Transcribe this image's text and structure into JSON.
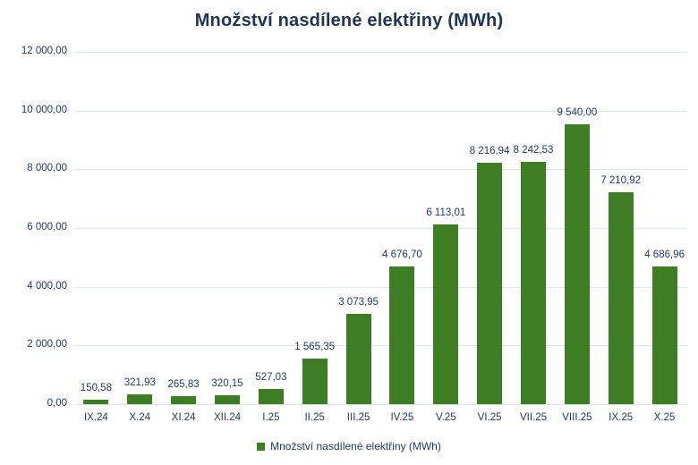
{
  "title": "Množství nasdílené elektřiny (MWh)",
  "legend": {
    "label": "Množství nasdílené elektřiny (MWh)"
  },
  "colors": {
    "bar": "#3d7d24",
    "gridline": "#dbe8f2",
    "text": "#24395b",
    "title": "#1f3556",
    "background": "#ffffff"
  },
  "chart_data": {
    "type": "bar",
    "title": "Množství nasdílené elektřiny (MWh)",
    "xlabel": "",
    "ylabel": "",
    "categories": [
      "IX.24",
      "X.24",
      "XI.24",
      "XII.24",
      "I.25",
      "II.25",
      "III.25",
      "IV.25",
      "V.25",
      "VI.25",
      "VII.25",
      "VIII.25",
      "IX.25",
      "X.25"
    ],
    "values": [
      150.58,
      321.93,
      265.83,
      320.15,
      527.03,
      1565.35,
      3073.95,
      4676.7,
      6113.01,
      8216.94,
      8242.53,
      9540.0,
      7210.92,
      4686.96
    ],
    "value_labels": [
      "150,58",
      "321,93",
      "265,83",
      "320,15",
      "527,03",
      "1 565,35",
      "3 073,95",
      "4 676,70",
      "6 113,01",
      "8 216,94",
      "8 242,53",
      "9 540,00",
      "7 210,92",
      "4 686,96"
    ],
    "ylim": [
      0,
      12000
    ],
    "ytick_values": [
      0,
      2000,
      4000,
      6000,
      8000,
      10000,
      12000
    ],
    "ytick_labels": [
      "0,00",
      "2 000,00",
      "4 000,00",
      "6 000,00",
      "8 000,00",
      "10 000,00",
      "12 000,00"
    ],
    "grid": true,
    "legend_position": "bottom",
    "legend_entries": [
      "Množství nasdílené elektřiny (MWh)"
    ]
  }
}
